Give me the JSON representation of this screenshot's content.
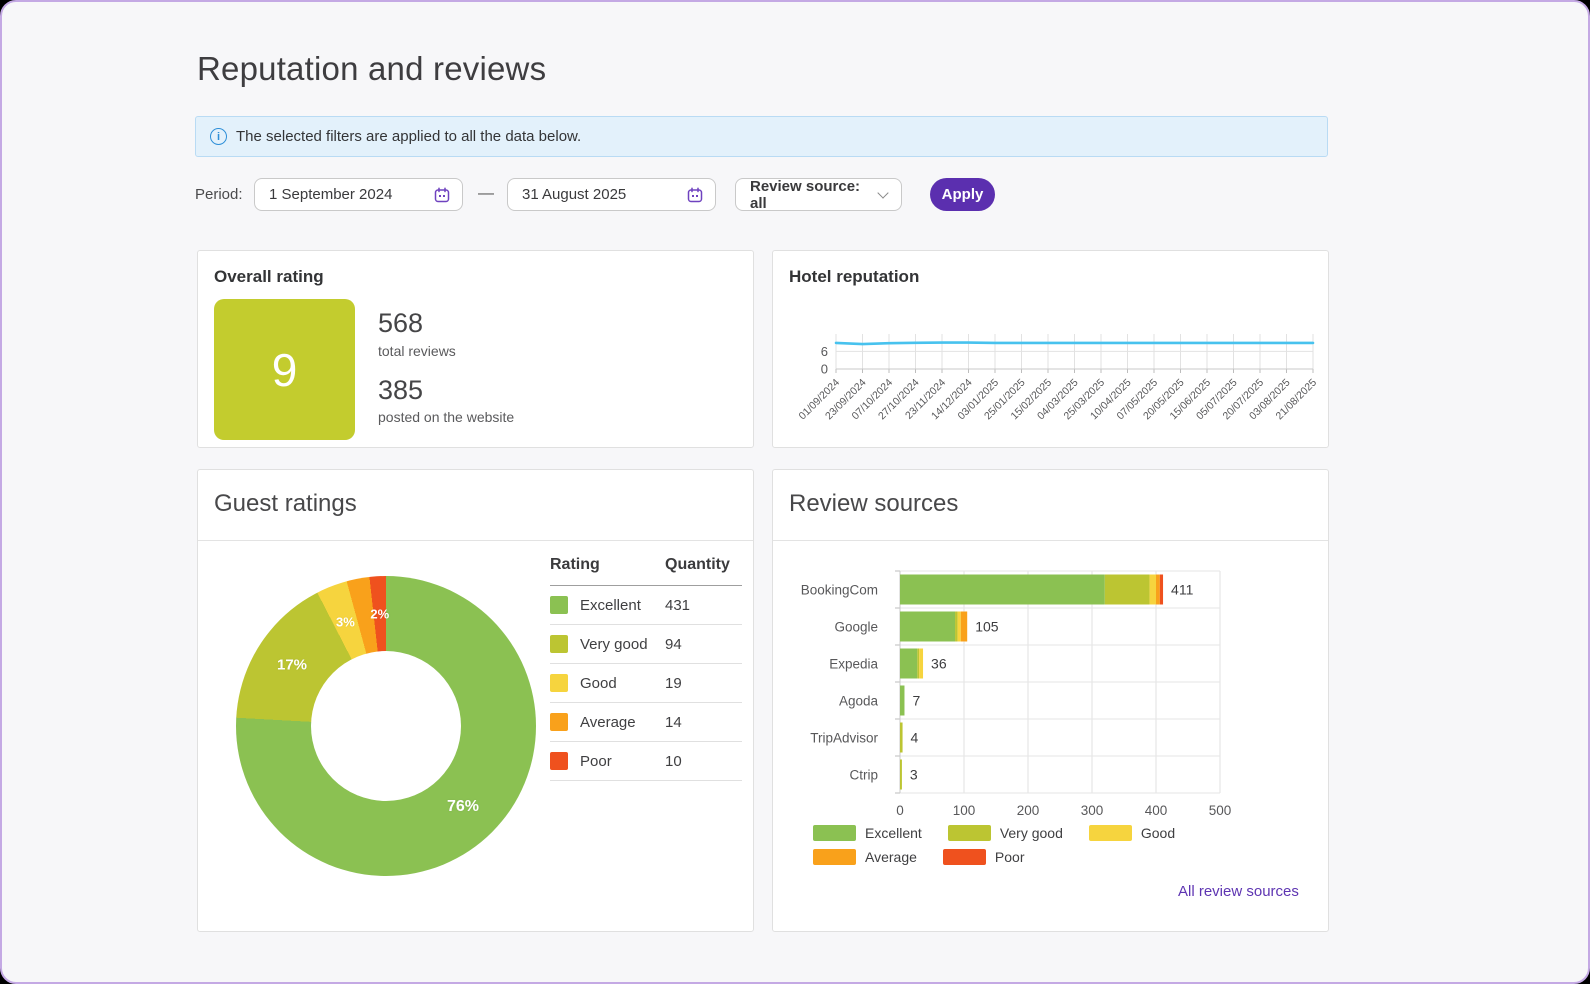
{
  "page": {
    "title": "Reputation and reviews"
  },
  "banner": {
    "icon": "info-icon",
    "text": "The selected filters are applied to all the data below."
  },
  "filters": {
    "period_label": "Period:",
    "date_from": "1 September 2024",
    "date_to": "31 August 2025",
    "range_separator": "—",
    "review_source_label": "Review source: all",
    "apply_label": "Apply"
  },
  "overall_rating": {
    "title": "Overall rating",
    "score": "9",
    "total_reviews_value": "568",
    "total_reviews_label": "total reviews",
    "posted_value": "385",
    "posted_label": "posted on the website"
  },
  "hotel_reputation": {
    "title": "Hotel reputation"
  },
  "guest_ratings": {
    "title": "Guest ratings",
    "table_headers": [
      "Rating",
      "Quantity"
    ]
  },
  "review_sources": {
    "title": "Review sources",
    "all_link": "All review sources"
  },
  "colors": {
    "accent_purple": "#5b2faf",
    "link_purple": "#5e35b2",
    "calendar_icon_purple": "#6f42bf",
    "banner_bg": "#e3f1fb",
    "banner_border": "#b9dbf4",
    "info_icon_blue": "#2e8fd8",
    "score_tile_green": "#c3cc2e",
    "line_cyan": "#47c2ee",
    "ratings": [
      "#8bc152",
      "#bcc532",
      "#f6d43e",
      "#f9a11b",
      "#ef511e"
    ]
  },
  "chart_data": [
    {
      "id": "hotel_reputation_trend",
      "type": "line",
      "title": "Hotel reputation",
      "x": [
        "01/09/2024",
        "23/09/2024",
        "07/10/2024",
        "27/10/2024",
        "23/11/2024",
        "14/12/2024",
        "03/01/2025",
        "25/01/2025",
        "15/02/2025",
        "04/03/2025",
        "25/03/2025",
        "10/04/2025",
        "07/05/2025",
        "20/05/2025",
        "15/06/2025",
        "05/07/2025",
        "20/07/2025",
        "03/08/2025",
        "21/08/2025"
      ],
      "values": [
        8.9,
        8.5,
        8.8,
        8.95,
        9.0,
        9.0,
        8.9,
        8.9,
        8.9,
        8.9,
        8.9,
        8.9,
        8.9,
        8.9,
        8.9,
        8.9,
        8.9,
        8.9,
        8.9
      ],
      "ylim": [
        0,
        10
      ],
      "yticks": [
        0,
        6
      ],
      "grid": true,
      "legend_position": "none"
    },
    {
      "id": "guest_ratings_donut",
      "type": "pie",
      "labels": [
        "Excellent",
        "Very good",
        "Good",
        "Average",
        "Poor"
      ],
      "values": [
        431,
        94,
        19,
        14,
        10
      ],
      "total": 568,
      "percent_labels": [
        "76%",
        "17%",
        "3%",
        "2%",
        "2%"
      ],
      "percent_label_shown": [
        true,
        true,
        true,
        false,
        true
      ],
      "donut": true
    },
    {
      "id": "review_sources_bars",
      "type": "bar",
      "orientation": "horizontal",
      "categories": [
        "BookingCom",
        "Google",
        "Expedia",
        "Agoda",
        "TripAdvisor",
        "Ctrip"
      ],
      "totals": [
        411,
        105,
        36,
        7,
        4,
        3
      ],
      "series": [
        {
          "name": "Excellent",
          "values": [
            320,
            86,
            27,
            7,
            0,
            0
          ]
        },
        {
          "name": "Very good",
          "values": [
            70,
            4,
            3,
            0,
            4,
            3
          ]
        },
        {
          "name": "Good",
          "values": [
            10,
            5,
            6,
            0,
            0,
            0
          ]
        },
        {
          "name": "Average",
          "values": [
            6,
            10,
            0,
            0,
            0,
            0
          ]
        },
        {
          "name": "Poor",
          "values": [
            5,
            0,
            0,
            0,
            0,
            0
          ]
        }
      ],
      "xlim": [
        0,
        500
      ],
      "xticks": [
        0,
        100,
        200,
        300,
        400,
        500
      ],
      "grid": true,
      "legend": [
        "Excellent",
        "Very good",
        "Good",
        "Average",
        "Poor"
      ],
      "legend_rows": [
        [
          0,
          1,
          2
        ],
        [
          3,
          4
        ]
      ],
      "legend_position": "bottom"
    }
  ]
}
